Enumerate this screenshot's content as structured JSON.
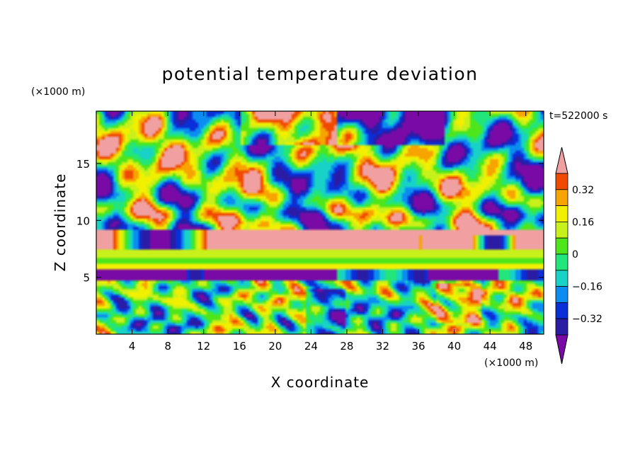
{
  "chart_data": {
    "type": "heatmap",
    "title": "potential temperature deviation",
    "xlabel": "X coordinate",
    "ylabel": "Z coordinate",
    "x_unit": "(×1000 m)",
    "y_unit": "(×1000 m)",
    "time_label": "t=522000 s",
    "xlim": [
      0,
      50
    ],
    "ylim": [
      0,
      19.6
    ],
    "x_ticks": [
      4,
      8,
      12,
      16,
      20,
      24,
      28,
      32,
      36,
      40,
      44,
      48
    ],
    "y_ticks": [
      5,
      10,
      15
    ],
    "colorbar": {
      "levels": [
        -0.4,
        -0.32,
        -0.24,
        -0.16,
        -0.08,
        0,
        0.08,
        0.16,
        0.24,
        0.32,
        0.4
      ],
      "labels": [
        {
          "value": 0.32,
          "text": "0.32"
        },
        {
          "value": 0.16,
          "text": "0.16"
        },
        {
          "value": 0,
          "text": "0"
        },
        {
          "value": -0.16,
          "text": "−0.16"
        },
        {
          "value": -0.32,
          "text": "−0.32"
        }
      ],
      "colors": [
        "#7a0aa6",
        "#2b1ca6",
        "#0a2ed8",
        "#0a8cf0",
        "#18d2c8",
        "#22e67a",
        "#4ee61a",
        "#c8f01a",
        "#f0f000",
        "#f7a300",
        "#f04a00",
        "#f0a0a0"
      ],
      "extend": "both"
    }
  }
}
